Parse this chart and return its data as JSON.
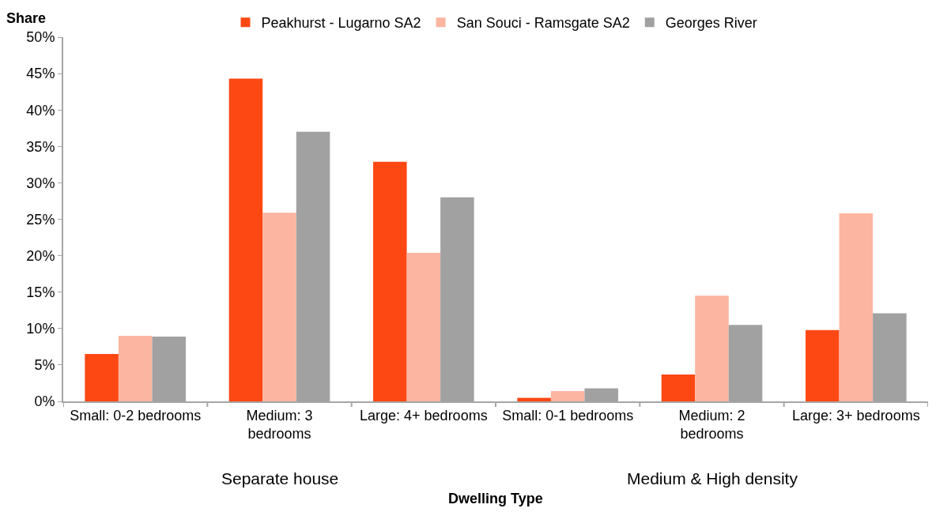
{
  "chart_data": {
    "type": "bar",
    "xlabel": "Dwelling Type",
    "ylabel": "Share",
    "categories": [
      "Small: 0-2 bedrooms",
      "Medium: 3\nbedrooms",
      "Large: 4+ bedrooms",
      "Small: 0-1 bedrooms",
      "Medium: 2\nbedrooms",
      "Large: 3+ bedrooms"
    ],
    "series": [
      {
        "name": "Peakhurst - Lugarno SA2",
        "color": "#fe4814",
        "values": [
          6.5,
          44.3,
          32.9,
          0.5,
          3.7,
          9.8
        ]
      },
      {
        "name": "San Souci - Ramsgate SA2",
        "color": "#fcb5a1",
        "values": [
          9.0,
          25.9,
          20.4,
          1.4,
          14.5,
          25.8
        ]
      },
      {
        "name": "Georges River",
        "color": "#a1a1a1",
        "values": [
          8.9,
          37.0,
          28.0,
          1.8,
          10.5,
          12.1
        ]
      }
    ],
    "ylim": [
      0,
      50
    ],
    "yticks": [
      {
        "value": 0,
        "label": "0%"
      },
      {
        "value": 5,
        "label": "5%"
      },
      {
        "value": 10,
        "label": "10%"
      },
      {
        "value": 15,
        "label": "15%"
      },
      {
        "value": 20,
        "label": "20%"
      },
      {
        "value": 25,
        "label": "25%"
      },
      {
        "value": 30,
        "label": "30%"
      },
      {
        "value": 35,
        "label": "35%"
      },
      {
        "value": 40,
        "label": "40%"
      },
      {
        "value": 45,
        "label": "45%"
      },
      {
        "value": 50,
        "label": "50%"
      }
    ],
    "annotations": [
      "Separate house",
      "Medium & High density"
    ],
    "legend": "top",
    "grid": false
  }
}
